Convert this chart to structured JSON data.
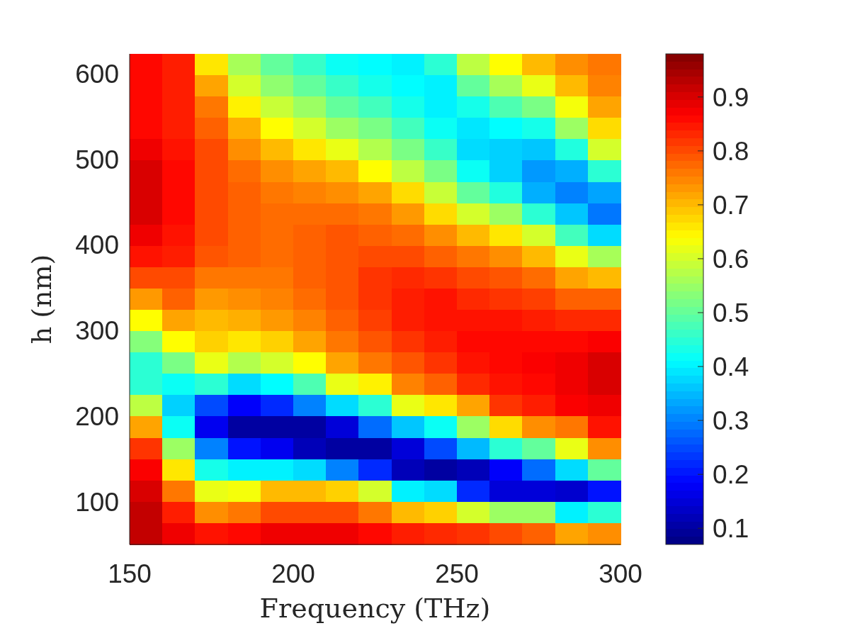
{
  "chart_data": {
    "type": "heatmap",
    "xlabel": "Frequency (THz)",
    "ylabel": "h (nm)",
    "x": [
      155,
      165,
      175,
      185,
      195,
      205,
      215,
      225,
      235,
      245,
      255,
      265,
      275,
      285,
      295
    ],
    "cells": [
      [
        0.86,
        0.84,
        0.66,
        0.56,
        0.5,
        0.46,
        0.42,
        0.41,
        0.4,
        0.45,
        0.58,
        0.64,
        0.7,
        0.74,
        0.76
      ],
      [
        0.86,
        0.84,
        0.72,
        0.6,
        0.54,
        0.5,
        0.46,
        0.43,
        0.41,
        0.4,
        0.5,
        0.56,
        0.62,
        0.7,
        0.75
      ],
      [
        0.86,
        0.84,
        0.76,
        0.65,
        0.59,
        0.55,
        0.5,
        0.47,
        0.43,
        0.4,
        0.43,
        0.48,
        0.52,
        0.63,
        0.72
      ],
      [
        0.86,
        0.84,
        0.78,
        0.71,
        0.64,
        0.6,
        0.55,
        0.52,
        0.47,
        0.42,
        0.39,
        0.41,
        0.43,
        0.55,
        0.67
      ],
      [
        0.88,
        0.85,
        0.8,
        0.74,
        0.7,
        0.66,
        0.62,
        0.57,
        0.52,
        0.46,
        0.38,
        0.37,
        0.36,
        0.44,
        0.6
      ],
      [
        0.9,
        0.86,
        0.8,
        0.77,
        0.74,
        0.72,
        0.7,
        0.64,
        0.58,
        0.52,
        0.42,
        0.37,
        0.32,
        0.34,
        0.45
      ],
      [
        0.9,
        0.86,
        0.8,
        0.78,
        0.76,
        0.75,
        0.74,
        0.72,
        0.67,
        0.59,
        0.5,
        0.44,
        0.34,
        0.3,
        0.33
      ],
      [
        0.9,
        0.86,
        0.8,
        0.78,
        0.77,
        0.77,
        0.77,
        0.76,
        0.73,
        0.67,
        0.6,
        0.55,
        0.45,
        0.36,
        0.29
      ],
      [
        0.88,
        0.85,
        0.8,
        0.78,
        0.77,
        0.78,
        0.79,
        0.78,
        0.77,
        0.74,
        0.7,
        0.66,
        0.6,
        0.47,
        0.38
      ],
      [
        0.85,
        0.84,
        0.79,
        0.78,
        0.77,
        0.78,
        0.79,
        0.8,
        0.8,
        0.78,
        0.76,
        0.74,
        0.7,
        0.62,
        0.56
      ],
      [
        0.8,
        0.8,
        0.76,
        0.76,
        0.76,
        0.78,
        0.79,
        0.82,
        0.83,
        0.82,
        0.8,
        0.79,
        0.77,
        0.72,
        0.7
      ],
      [
        0.73,
        0.78,
        0.73,
        0.74,
        0.75,
        0.77,
        0.79,
        0.82,
        0.84,
        0.85,
        0.83,
        0.82,
        0.81,
        0.78,
        0.78
      ],
      [
        0.64,
        0.72,
        0.7,
        0.71,
        0.73,
        0.75,
        0.78,
        0.81,
        0.84,
        0.85,
        0.85,
        0.85,
        0.84,
        0.83,
        0.83
      ],
      [
        0.53,
        0.64,
        0.68,
        0.66,
        0.68,
        0.72,
        0.76,
        0.79,
        0.82,
        0.84,
        0.86,
        0.86,
        0.86,
        0.86,
        0.87
      ],
      [
        0.45,
        0.52,
        0.62,
        0.57,
        0.6,
        0.64,
        0.72,
        0.76,
        0.79,
        0.82,
        0.85,
        0.86,
        0.87,
        0.88,
        0.9
      ],
      [
        0.45,
        0.42,
        0.45,
        0.38,
        0.41,
        0.48,
        0.62,
        0.65,
        0.75,
        0.78,
        0.83,
        0.85,
        0.86,
        0.88,
        0.9
      ],
      [
        0.58,
        0.37,
        0.25,
        0.18,
        0.22,
        0.3,
        0.38,
        0.45,
        0.62,
        0.66,
        0.72,
        0.82,
        0.84,
        0.87,
        0.88
      ],
      [
        0.72,
        0.42,
        0.17,
        0.1,
        0.1,
        0.1,
        0.15,
        0.28,
        0.36,
        0.42,
        0.55,
        0.67,
        0.74,
        0.76,
        0.85
      ],
      [
        0.82,
        0.55,
        0.3,
        0.2,
        0.17,
        0.12,
        0.1,
        0.1,
        0.15,
        0.25,
        0.35,
        0.45,
        0.5,
        0.62,
        0.74
      ],
      [
        0.87,
        0.66,
        0.43,
        0.4,
        0.4,
        0.38,
        0.3,
        0.22,
        0.12,
        0.1,
        0.12,
        0.18,
        0.28,
        0.38,
        0.5
      ],
      [
        0.9,
        0.76,
        0.62,
        0.63,
        0.7,
        0.7,
        0.68,
        0.6,
        0.4,
        0.38,
        0.22,
        0.15,
        0.15,
        0.14,
        0.2
      ],
      [
        0.92,
        0.84,
        0.74,
        0.76,
        0.8,
        0.8,
        0.8,
        0.76,
        0.7,
        0.68,
        0.6,
        0.55,
        0.55,
        0.4,
        0.45
      ],
      [
        0.92,
        0.88,
        0.85,
        0.86,
        0.88,
        0.88,
        0.88,
        0.86,
        0.84,
        0.83,
        0.82,
        0.8,
        0.78,
        0.72,
        0.74
      ]
    ],
    "xlim": [
      150,
      300
    ],
    "ylim": [
      50,
      623
    ],
    "xticks": [
      150,
      200,
      250,
      300
    ],
    "yticks": [
      100,
      200,
      300,
      400,
      500,
      600
    ],
    "clim": [
      0.07,
      0.98
    ],
    "cticks": [
      0.1,
      0.2,
      0.3,
      0.4,
      0.5,
      0.6,
      0.7,
      0.8,
      0.9
    ]
  }
}
